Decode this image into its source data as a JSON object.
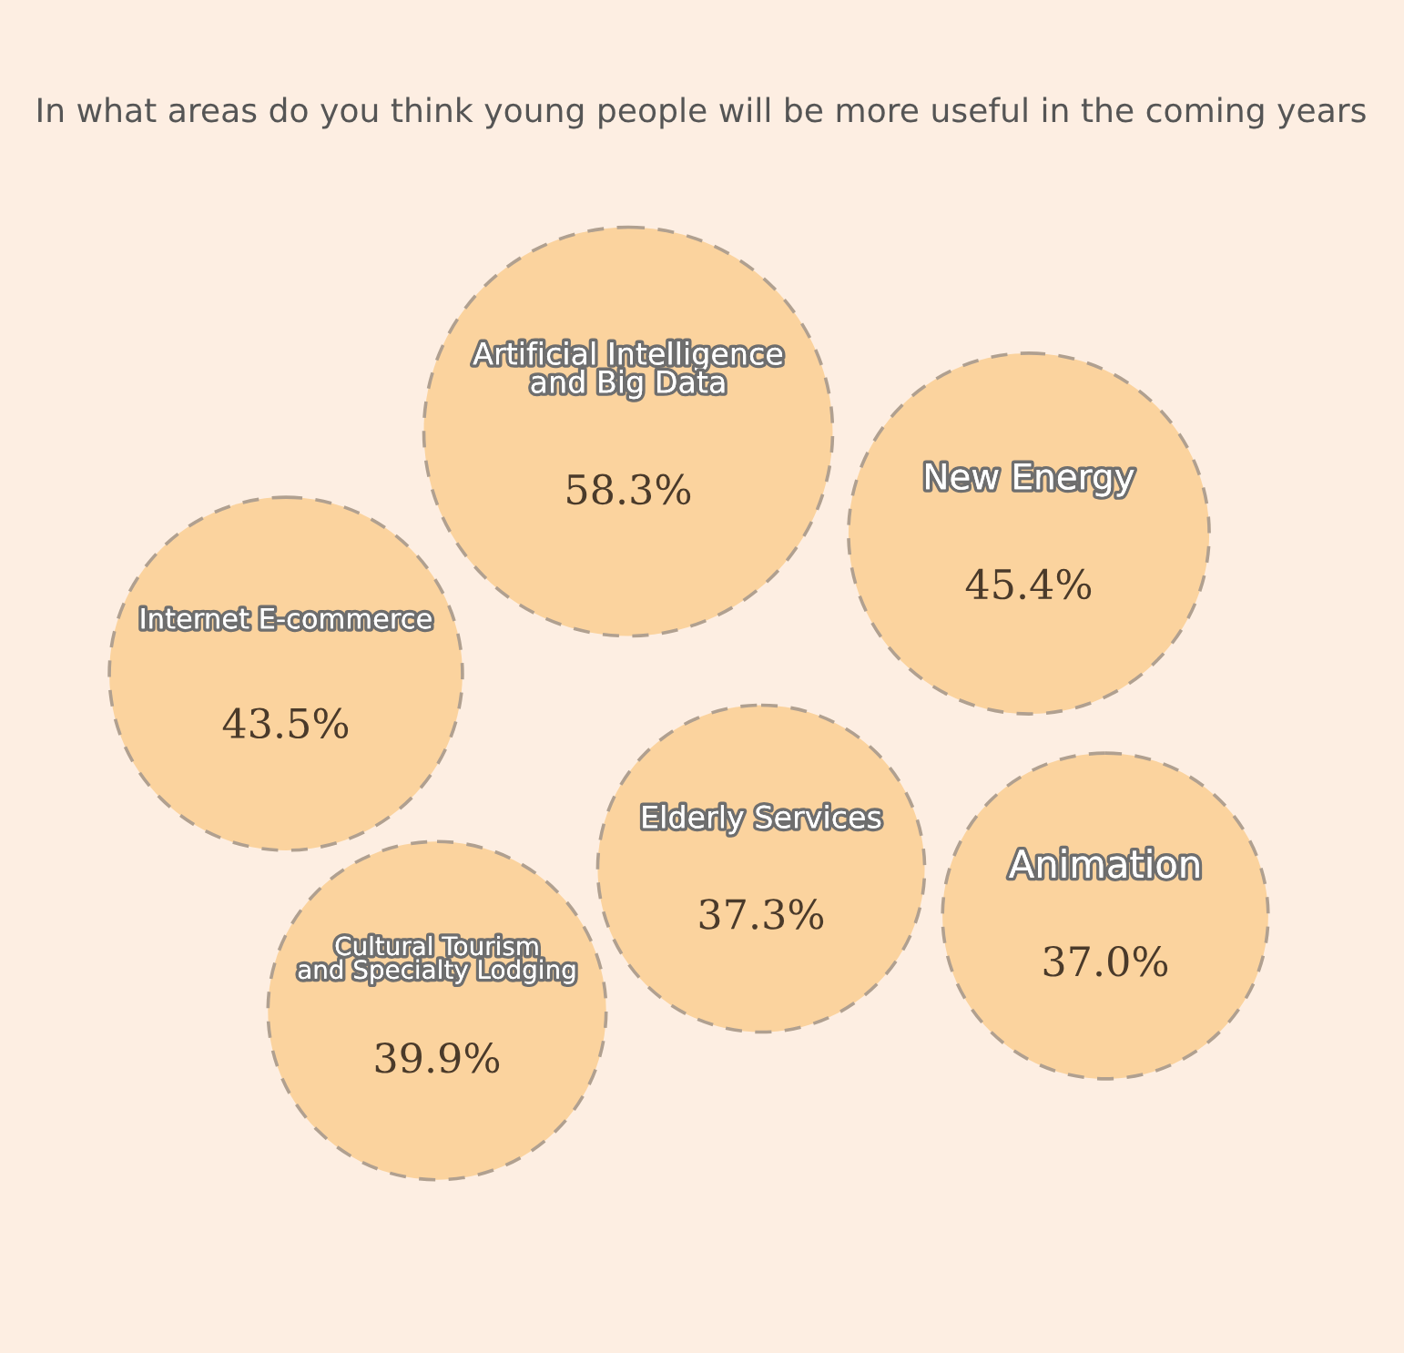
{
  "chart_data": {
    "type": "other",
    "title": "In what areas do you think young people will be more useful in the coming years",
    "categories": [
      "Artificial Intelligence\nand Big Data",
      "New Energy",
      "Internet E-commerce",
      "Cultural Tourism\nand Specialty Lodging",
      "Elderly Services",
      "Animation"
    ],
    "values": [
      58.3,
      45.4,
      43.5,
      39.9,
      37.3,
      37.0
    ],
    "color": "#fbd39e",
    "value_labels": [
      "58.3%",
      "45.4%",
      "43.5%",
      "39.9%",
      "37.3%",
      "37.0%"
    ]
  }
}
